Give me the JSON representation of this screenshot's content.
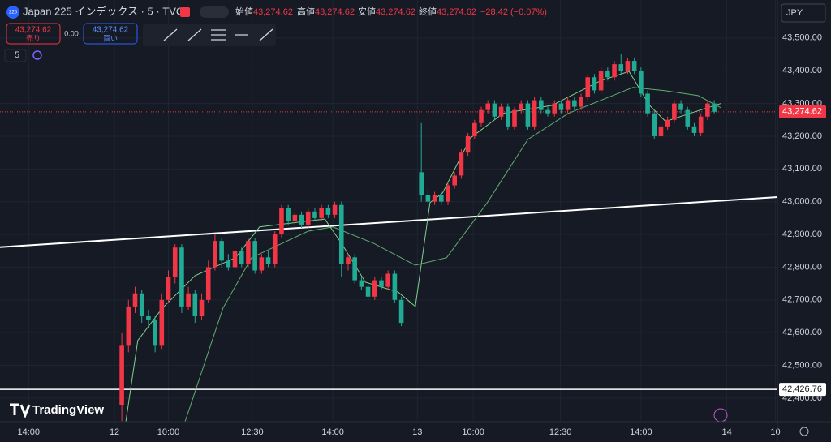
{
  "header": {
    "symbol_badge": "225",
    "symbol": "Japan 225 インデックス · 5 · TVC",
    "open_label": "始値",
    "open": "43,274.62",
    "high_label": "高値",
    "high": "43,274.62",
    "low_label": "安値",
    "low": "43,274.62",
    "close_label": "終値",
    "close": "43,274.62",
    "change": "−28.42 (−0.07%)",
    "sell_price": "43,274.62",
    "sell_label": "売り",
    "spread": "0.00",
    "buy_price": "43,274.62",
    "buy_label": "買い",
    "interval": "5",
    "currency": "JPY",
    "brand": "TradingView"
  },
  "chart_data": {
    "type": "candlestick",
    "up_color": "#f23645",
    "down_color": "#22ab94",
    "categories": [
      null,
      null,
      null,
      null,
      null,
      null,
      null,
      null,
      null,
      null,
      null,
      null,
      null,
      null,
      null,
      null,
      null,
      null,
      null,
      null,
      null,
      null,
      null,
      null,
      null,
      null,
      null,
      null,
      null,
      null,
      null,
      null,
      null,
      null,
      null,
      null,
      null,
      null,
      null,
      null,
      null,
      null,
      null,
      null,
      null,
      null,
      null,
      null,
      null,
      null,
      null,
      null,
      null,
      null,
      null,
      null,
      null,
      null,
      null,
      null,
      null,
      null,
      null,
      null,
      null,
      null,
      null,
      null,
      null,
      null,
      null,
      null,
      null,
      null,
      null,
      null,
      null,
      null,
      null,
      null,
      null,
      null,
      null,
      null,
      null,
      null,
      null,
      null,
      null,
      null
    ],
    "ohlc": [
      [
        42380,
        42600,
        42330,
        42560
      ],
      [
        42560,
        42700,
        42540,
        42680
      ],
      [
        42680,
        42740,
        42660,
        42720
      ],
      [
        42720,
        42730,
        42630,
        42650
      ],
      [
        42650,
        42670,
        42620,
        42640
      ],
      [
        42640,
        42650,
        42540,
        42560
      ],
      [
        42560,
        42720,
        42550,
        42700
      ],
      [
        42700,
        42790,
        42690,
        42770
      ],
      [
        42770,
        42870,
        42750,
        42860
      ],
      [
        42860,
        42870,
        42660,
        42680
      ],
      [
        42680,
        42740,
        42670,
        42720
      ],
      [
        42720,
        42730,
        42630,
        42650
      ],
      [
        42650,
        42720,
        42640,
        42700
      ],
      [
        42700,
        42820,
        42690,
        42800
      ],
      [
        42800,
        42900,
        42790,
        42880
      ],
      [
        42880,
        42890,
        42800,
        42820
      ],
      [
        42820,
        42840,
        42790,
        42800
      ],
      [
        42800,
        42870,
        42790,
        42850
      ],
      [
        42850,
        42860,
        42800,
        42810
      ],
      [
        42810,
        42890,
        42800,
        42880
      ],
      [
        42880,
        42890,
        42780,
        42790
      ],
      [
        42790,
        42840,
        42780,
        42830
      ],
      [
        42830,
        42850,
        42800,
        42810
      ],
      [
        42810,
        42910,
        42800,
        42900
      ],
      [
        42900,
        42990,
        42890,
        42980
      ],
      [
        42980,
        42990,
        42930,
        42940
      ],
      [
        42940,
        42970,
        42930,
        42960
      ],
      [
        42960,
        42970,
        42920,
        42930
      ],
      [
        42930,
        42980,
        42920,
        42970
      ],
      [
        42970,
        42980,
        42940,
        42950
      ],
      [
        42950,
        42990,
        42940,
        42980
      ],
      [
        42980,
        42990,
        42950,
        42960
      ],
      [
        42960,
        43000,
        42950,
        42990
      ],
      [
        42990,
        43000,
        42770,
        42810
      ],
      [
        42810,
        42840,
        42790,
        42830
      ],
      [
        42830,
        42840,
        42750,
        42760
      ],
      [
        42760,
        42770,
        42730,
        42740
      ],
      [
        42740,
        42750,
        42700,
        42710
      ],
      [
        42710,
        42770,
        42700,
        42760
      ],
      [
        42760,
        42770,
        42730,
        42740
      ],
      [
        42740,
        42790,
        42730,
        42780
      ],
      [
        42780,
        42790,
        42690,
        42700
      ],
      [
        42700,
        42710,
        42620,
        42630
      ],
      null,
      null,
      [
        43090,
        43240,
        43000,
        43020
      ],
      [
        43020,
        43040,
        42990,
        43000
      ],
      [
        43000,
        43030,
        42990,
        43020
      ],
      [
        43020,
        43030,
        42990,
        43000
      ],
      [
        43000,
        43060,
        42990,
        43050
      ],
      [
        43050,
        43090,
        43040,
        43080
      ],
      [
        43080,
        43160,
        43070,
        43150
      ],
      [
        43150,
        43210,
        43140,
        43200
      ],
      [
        43200,
        43250,
        43190,
        43240
      ],
      [
        43240,
        43290,
        43230,
        43280
      ],
      [
        43280,
        43310,
        43270,
        43300
      ],
      [
        43300,
        43310,
        43250,
        43260
      ],
      [
        43260,
        43300,
        43250,
        43290
      ],
      [
        43290,
        43300,
        43220,
        43230
      ],
      [
        43230,
        43290,
        43220,
        43280
      ],
      [
        43280,
        43310,
        43270,
        43300
      ],
      [
        43300,
        43310,
        43220,
        43230
      ],
      [
        43230,
        43320,
        43220,
        43310
      ],
      [
        43310,
        43320,
        43270,
        43280
      ],
      [
        43280,
        43290,
        43260,
        43270
      ],
      [
        43270,
        43310,
        43260,
        43300
      ],
      [
        43300,
        43310,
        43270,
        43280
      ],
      [
        43280,
        43320,
        43270,
        43310
      ],
      [
        43310,
        43320,
        43280,
        43290
      ],
      [
        43290,
        43330,
        43280,
        43320
      ],
      [
        43320,
        43390,
        43310,
        43380
      ],
      [
        43380,
        43390,
        43330,
        43340
      ],
      [
        43340,
        43410,
        43330,
        43400
      ],
      [
        43400,
        43410,
        43370,
        43380
      ],
      [
        43380,
        43430,
        43370,
        43420
      ],
      [
        43420,
        43450,
        43390,
        43400
      ],
      [
        43400,
        43440,
        43390,
        43430
      ],
      [
        43430,
        43440,
        43390,
        43400
      ],
      [
        43400,
        43410,
        43320,
        43330
      ],
      [
        43330,
        43340,
        43260,
        43270
      ],
      [
        43270,
        43280,
        43190,
        43200
      ],
      [
        43200,
        43240,
        43190,
        43230
      ],
      [
        43230,
        43260,
        43220,
        43250
      ],
      [
        43250,
        43310,
        43240,
        43300
      ],
      [
        43300,
        43310,
        43270,
        43280
      ],
      [
        43280,
        43290,
        43220,
        43230
      ],
      [
        43230,
        43240,
        43200,
        43210
      ],
      [
        43210,
        43270,
        43200,
        43260
      ],
      [
        43260,
        43310,
        43250,
        43300
      ],
      [
        43300,
        43310,
        43270,
        43274.62
      ]
    ],
    "ma_fast": {
      "color": "#7fd18c",
      "x": [
        0.6,
        2.4,
        6.1,
        11,
        17.1,
        20.7,
        30.5,
        33,
        36.6,
        41.5,
        44.1,
        46.3,
        48.2,
        52.4,
        57.3,
        64.6,
        71.9,
        76.2,
        79.3,
        81.7,
        85.4,
        90
      ],
      "values": [
        42328,
        42576,
        42675,
        42774,
        42829,
        42923,
        42947,
        42873,
        42754,
        42724,
        42680,
        42997,
        43027,
        43195,
        43270,
        43294,
        43369,
        43398,
        43294,
        43245,
        43270,
        43300
      ]
    },
    "ma_slow": {
      "color": "#5fae6e",
      "x": [
        9.5,
        15.2,
        19.5,
        28,
        31.7,
        37.8,
        44.1,
        48.8,
        54.9,
        61,
        67.1,
        76.8,
        81.7,
        86.6,
        90
      ],
      "values": [
        42328,
        42675,
        42829,
        42910,
        42923,
        42873,
        42806,
        42829,
        42997,
        43190,
        43270,
        43349,
        43339,
        43324,
        43287
      ]
    },
    "trend_line": {
      "x": [
        -18.3,
        98.5
      ],
      "values": [
        42861,
        43014
      ]
    },
    "hline": {
      "value": 42426.76,
      "label": "42,426.76"
    },
    "last_price": {
      "value": 43274.62,
      "label": "43,274.62"
    },
    "xlim": [
      -18.3,
      98.5
    ],
    "ylim": [
      42328,
      43616
    ],
    "xticks": [
      {
        "value": -14,
        "label": "14:00"
      },
      {
        "value": -1.1,
        "label": "12"
      },
      {
        "value": 7,
        "label": "10:00"
      },
      {
        "value": 19.6,
        "label": "12:30"
      },
      {
        "value": 31.7,
        "label": "14:00"
      },
      {
        "value": 44.4,
        "label": "13"
      },
      {
        "value": 52.8,
        "label": "10:00"
      },
      {
        "value": 65.9,
        "label": "12:30"
      },
      {
        "value": 78,
        "label": "14:00"
      },
      {
        "value": 90.9,
        "label": "14"
      },
      {
        "value": 98.2,
        "label": "10"
      }
    ],
    "yticks": [
      {
        "value": 43500,
        "label": "43,500.00"
      },
      {
        "value": 43400,
        "label": "43,400.00"
      },
      {
        "value": 43300,
        "label": "43,300.00"
      },
      {
        "value": 43200,
        "label": "43,200.00"
      },
      {
        "value": 43100,
        "label": "43,100.00"
      },
      {
        "value": 43000,
        "label": "43,000.00"
      },
      {
        "value": 42900,
        "label": "42,900.00"
      },
      {
        "value": 42800,
        "label": "42,800.00"
      },
      {
        "value": 42700,
        "label": "42,700.00"
      },
      {
        "value": 42600,
        "label": "42,600.00"
      },
      {
        "value": 42500,
        "label": "42,500.00"
      },
      {
        "value": 42400,
        "label": "42,400.00"
      }
    ],
    "grid": true
  }
}
